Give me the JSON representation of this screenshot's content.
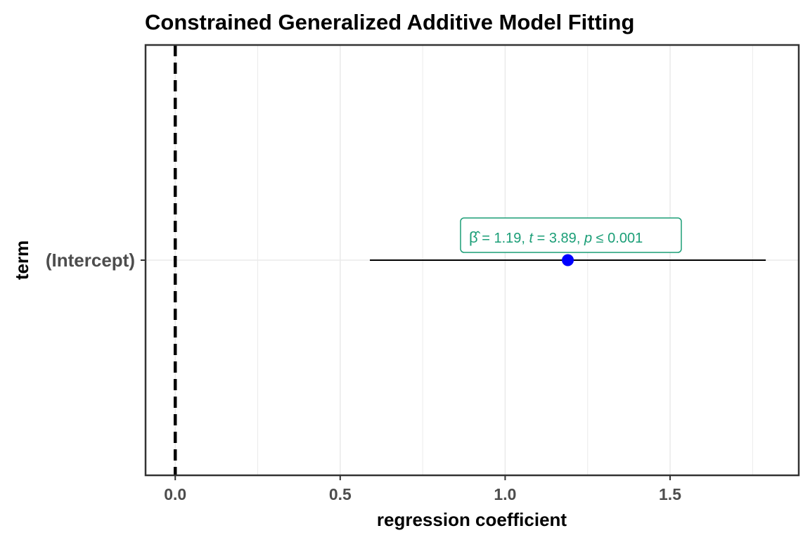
{
  "chart_data": {
    "type": "scatter",
    "title": "Constrained Generalized Additive Model Fitting",
    "xlabel": "regression coefficient",
    "ylabel": "term",
    "xlim": [
      -0.09,
      1.89
    ],
    "x_ticks": [
      0.0,
      0.5,
      1.0,
      1.5
    ],
    "x_tick_labels": [
      "0.0",
      "0.5",
      "1.0",
      "1.5"
    ],
    "terms": [
      "(Intercept)"
    ],
    "grid": true,
    "reference_line": {
      "x": 0,
      "style": "dashed",
      "color": "#000000"
    },
    "points": [
      {
        "term": "(Intercept)",
        "estimate": 1.19,
        "conf_low": 0.59,
        "conf_high": 1.79,
        "label": {
          "beta": "1.19",
          "t": "3.89",
          "p": "0.001"
        }
      }
    ],
    "colors": {
      "point": "#0000ff",
      "label": "#1b9e77",
      "errorbar": "#000000",
      "grid": "#ebebeb",
      "panel_border": "#333333"
    }
  }
}
